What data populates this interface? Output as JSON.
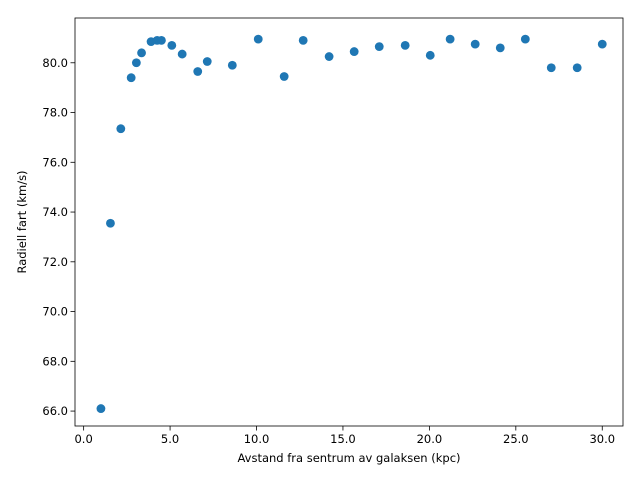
{
  "chart_data": {
    "type": "scatter",
    "title": "",
    "xlabel": "Avstand fra sentrum av galaksen (kpc)",
    "ylabel": "Radiell fart (km/s)",
    "xlim": [
      -0.5,
      31.2
    ],
    "ylim": [
      65.4,
      81.8
    ],
    "xticks": [
      0,
      5,
      10,
      15,
      20,
      25,
      30
    ],
    "xtick_labels": [
      "0.0",
      "5.0",
      "10.0",
      "15.0",
      "20.0",
      "25.0",
      "30.0"
    ],
    "yticks": [
      66,
      68,
      70,
      72,
      74,
      76,
      78,
      80
    ],
    "ytick_labels": [
      "66.0",
      "68.0",
      "70.0",
      "72.0",
      "74.0",
      "76.0",
      "78.0",
      "80.0"
    ],
    "grid": false,
    "marker_color": "#1f77b4",
    "series": [
      {
        "x": [
          1.0,
          1.55,
          2.15,
          2.75,
          3.05,
          3.35,
          3.9,
          4.25,
          4.5,
          5.1,
          5.7,
          6.6,
          7.15,
          8.6,
          10.1,
          11.6,
          12.7,
          14.2,
          15.65,
          17.1,
          18.6,
          20.05,
          21.2,
          22.65,
          24.1,
          25.55,
          27.05,
          28.55,
          30.0
        ],
        "y": [
          66.1,
          73.55,
          77.35,
          79.4,
          80.0,
          80.4,
          80.85,
          80.9,
          80.9,
          80.7,
          80.35,
          79.65,
          80.05,
          79.9,
          80.95,
          79.45,
          80.9,
          80.25,
          80.45,
          80.65,
          80.7,
          80.3,
          80.95,
          80.75,
          80.6,
          80.95,
          79.8,
          79.8,
          80.75
        ]
      }
    ]
  }
}
